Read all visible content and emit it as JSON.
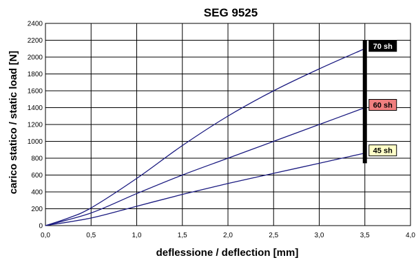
{
  "chart_data": {
    "type": "line",
    "title": "SEG 9525",
    "xlabel": "deflessione / deflection [mm]",
    "ylabel": "carico statico / static load [N]",
    "xlim": [
      0,
      4
    ],
    "ylim": [
      0,
      2400
    ],
    "x_ticks": [
      "0,0",
      "0,5",
      "1,0",
      "1,5",
      "2,0",
      "2,5",
      "3,0",
      "3,5",
      "4,0"
    ],
    "y_ticks": [
      "0",
      "200",
      "400",
      "600",
      "800",
      "1000",
      "1200",
      "1400",
      "1600",
      "1800",
      "2000",
      "2200",
      "2400"
    ],
    "grid": true,
    "limit_line": {
      "x": 3.5,
      "y_range": [
        740,
        2200
      ],
      "color": "#000000"
    },
    "series": [
      {
        "name": "70 sh",
        "color": "#1a1a80",
        "label_bg": "#000000",
        "label_fg": "#ffffff",
        "x": [
          0,
          0.25,
          0.5,
          1.0,
          1.5,
          2.0,
          2.5,
          3.0,
          3.5
        ],
        "y": [
          0,
          90,
          210,
          560,
          950,
          1300,
          1600,
          1860,
          2100
        ]
      },
      {
        "name": "60 sh",
        "color": "#1a1a80",
        "label_bg": "#f07f7f",
        "label_fg": "#000000",
        "x": [
          0,
          0.5,
          1.0,
          1.5,
          2.0,
          2.5,
          3.0,
          3.5
        ],
        "y": [
          0,
          150,
          380,
          600,
          800,
          1000,
          1200,
          1400
        ]
      },
      {
        "name": "45 sh",
        "color": "#1a1a80",
        "label_bg": "#ffffc8",
        "label_fg": "#000000",
        "x": [
          0,
          0.5,
          1.0,
          1.5,
          2.0,
          2.5,
          3.0,
          3.5
        ],
        "y": [
          0,
          90,
          230,
          370,
          500,
          620,
          740,
          860
        ]
      }
    ]
  }
}
